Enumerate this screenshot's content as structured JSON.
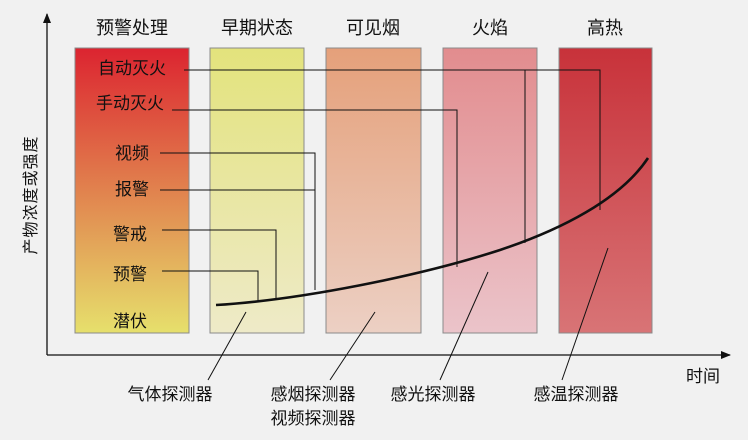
{
  "axes": {
    "y_label": "产物浓度或强度",
    "x_label": "时间"
  },
  "stages": [
    {
      "key": "response",
      "label": "预警处理",
      "color_top": "#dc2430",
      "color_bottom": "#e6e06c"
    },
    {
      "key": "early",
      "label": "早期状态",
      "color_top": "#e3e37c",
      "color_bottom": "#eeeac8"
    },
    {
      "key": "smoke",
      "label": "可见烟",
      "color_top": "#e5a07a",
      "color_bottom": "#ecd0c4"
    },
    {
      "key": "flame",
      "label": "火焰",
      "color_top": "#e28c8e",
      "color_bottom": "#ebc4ca"
    },
    {
      "key": "heat",
      "label": "高热",
      "color_top": "#c8323a",
      "color_bottom": "#d87476"
    }
  ],
  "response_levels": [
    {
      "key": "auto",
      "label": "自动灭火"
    },
    {
      "key": "manual",
      "label": "手动灭火"
    },
    {
      "key": "video",
      "label": "视频"
    },
    {
      "key": "alarm",
      "label": "报警"
    },
    {
      "key": "alert",
      "label": "警戒"
    },
    {
      "key": "prealarm",
      "label": "预警"
    },
    {
      "key": "latent",
      "label": "潜伏"
    }
  ],
  "detectors": [
    {
      "key": "gas",
      "label": "气体探测器"
    },
    {
      "key": "smoke",
      "label": "感烟探测器"
    },
    {
      "key": "video",
      "label": "视频探测器"
    },
    {
      "key": "light",
      "label": "感光探测器"
    },
    {
      "key": "heat",
      "label": "感温探测器"
    }
  ]
}
